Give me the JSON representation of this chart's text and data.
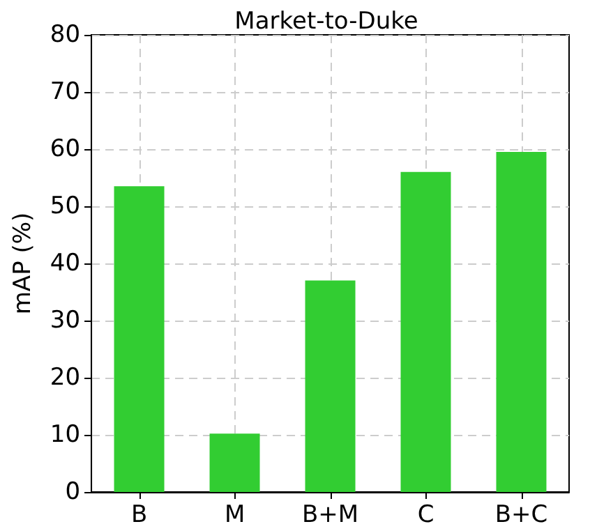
{
  "chart_data": {
    "type": "bar",
    "title": "Market-to-Duke",
    "ylabel": "mAP (%)",
    "categories": [
      "B",
      "M",
      "B+M",
      "C",
      "B+C"
    ],
    "values": [
      53.5,
      10.2,
      37,
      56,
      59.5
    ],
    "color": "#32cd32",
    "ylim": [
      0,
      80
    ],
    "yticks": [
      0,
      10,
      20,
      30,
      40,
      50,
      60,
      70,
      80
    ],
    "grid": true
  }
}
